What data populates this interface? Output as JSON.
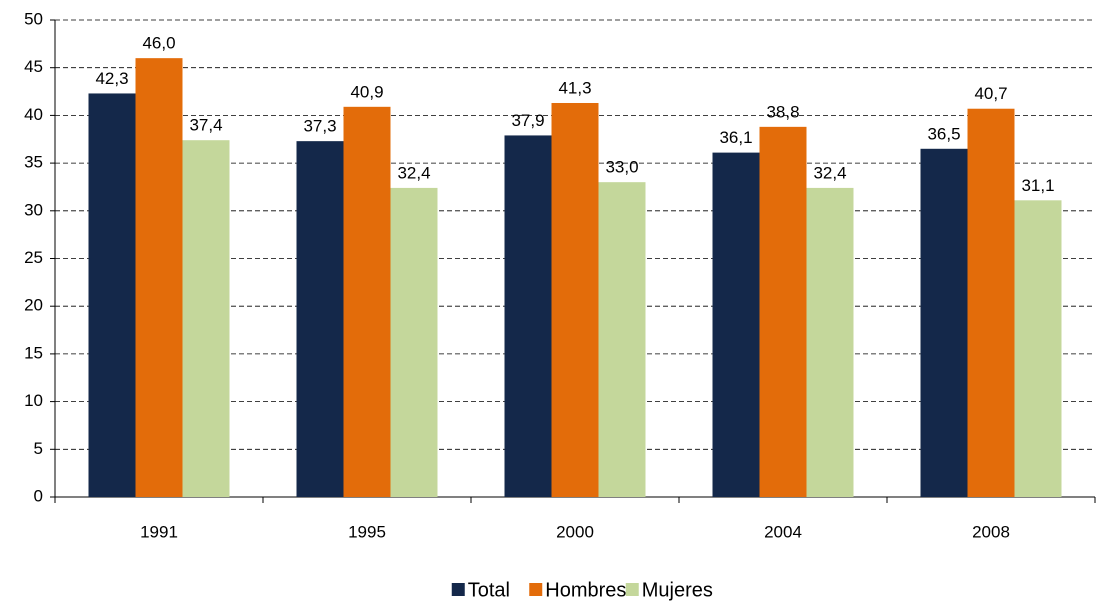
{
  "chart_data": {
    "type": "bar",
    "categories": [
      "1991",
      "1995",
      "2000",
      "2004",
      "2008"
    ],
    "series": [
      {
        "name": "Total",
        "color": "#14284a",
        "values": [
          42.3,
          37.3,
          37.9,
          36.1,
          36.5
        ],
        "value_labels": [
          "42,3",
          "37,3",
          "37,9",
          "36,1",
          "36,5"
        ]
      },
      {
        "name": "Hombres",
        "color": "#e36c0a",
        "values": [
          46.0,
          40.9,
          41.3,
          38.8,
          40.7
        ],
        "value_labels": [
          "46,0",
          "40,9",
          "41,3",
          "38,8",
          "40,7"
        ]
      },
      {
        "name": "Mujeres",
        "color": "#c4d79b",
        "values": [
          37.4,
          32.4,
          33.0,
          32.4,
          31.1
        ],
        "value_labels": [
          "37,4",
          "32,4",
          "33,0",
          "32,4",
          "31,1"
        ]
      }
    ],
    "ylim": [
      0,
      50
    ],
    "yticks": [
      0,
      5,
      10,
      15,
      20,
      25,
      30,
      35,
      40,
      45,
      50
    ],
    "grid": true,
    "legend": "bottom"
  }
}
